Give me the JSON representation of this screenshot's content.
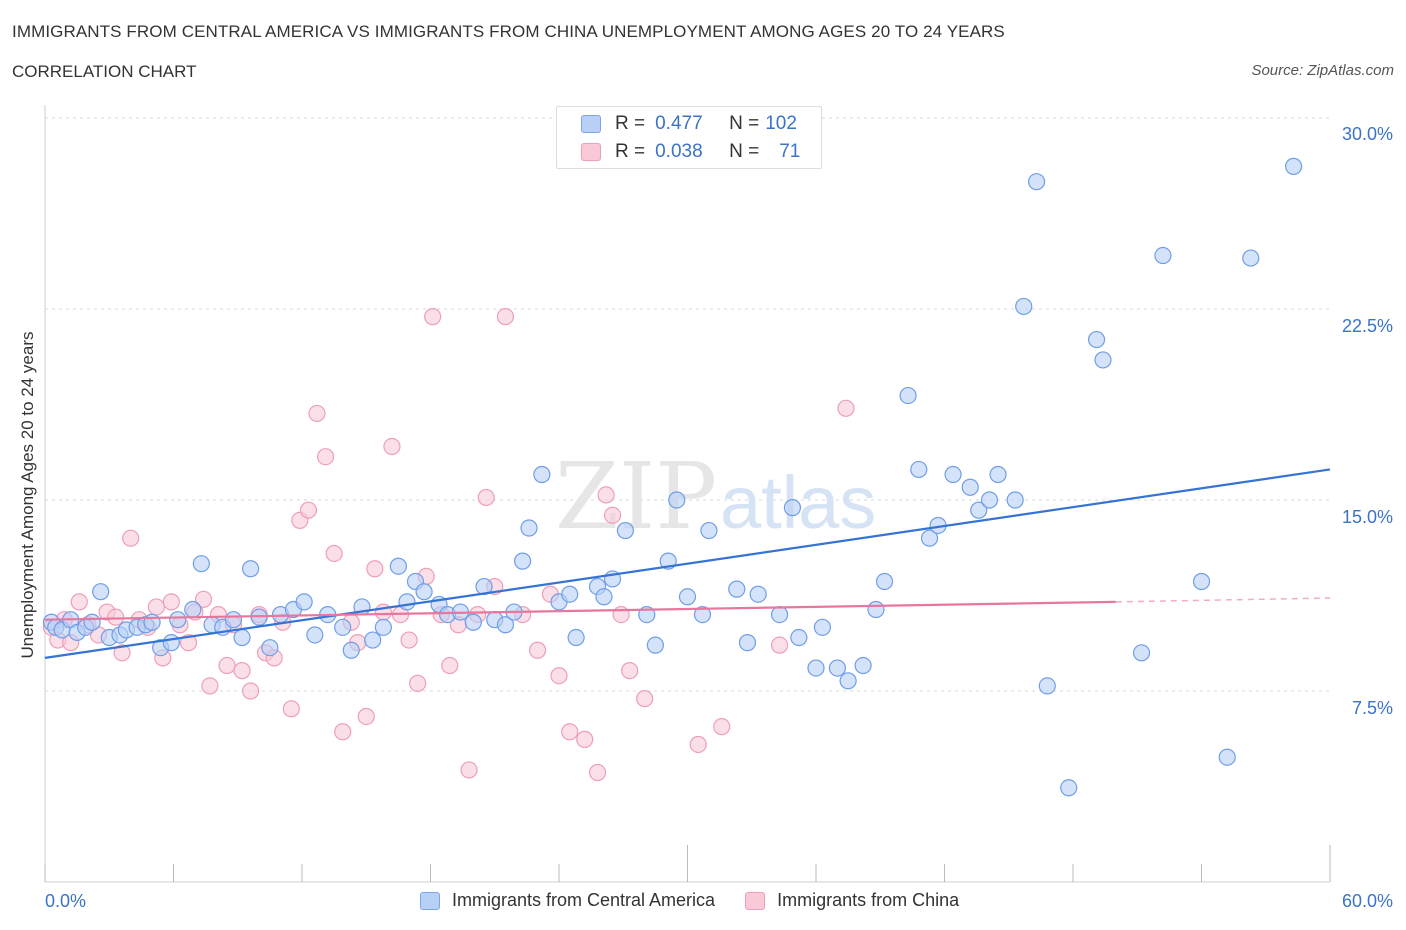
{
  "header": {
    "title": "IMMIGRANTS FROM CENTRAL AMERICA VS IMMIGRANTS FROM CHINA UNEMPLOYMENT AMONG AGES 20 TO 24 YEARS",
    "subtitle": "CORRELATION CHART",
    "source": "Source: ZipAtlas.com"
  },
  "legend": {
    "r_label": "R =",
    "n_label": "N =",
    "series": [
      {
        "r": "0.477",
        "n": "102"
      },
      {
        "r": "0.038",
        "n": "71"
      }
    ]
  },
  "watermark": {
    "zip": "ZIP",
    "atlas": "atlas"
  },
  "chart_data": {
    "type": "scatter",
    "title": "IMMIGRANTS FROM CENTRAL AMERICA VS IMMIGRANTS FROM CHINA UNEMPLOYMENT AMONG AGES 20 TO 24 YEARS",
    "subtitle": "CORRELATION CHART",
    "xlabel": "",
    "ylabel": "Unemployment Among Ages 20 to 24 years",
    "xlim": [
      0,
      60
    ],
    "ylim": [
      0,
      30
    ],
    "x_tick_labels": [
      "0.0%",
      "60.0%"
    ],
    "y_tick_labels": [
      "7.5%",
      "15.0%",
      "22.5%",
      "30.0%"
    ],
    "y_ticks": [
      7.5,
      15,
      22.5,
      30
    ],
    "grid": "horizontal dashed",
    "legend_position": "top-center and bottom",
    "colors": {
      "blue": "#6f9ee8",
      "blue_fill": "#b8d0f5",
      "blue_line": "#3574d4",
      "pink": "#ee9fb8",
      "pink_fill": "#f9c9d8",
      "pink_line": "#e7779e"
    },
    "series": [
      {
        "name": "Immigrants from Central America",
        "color": "blue",
        "r": 0.477,
        "n": 102,
        "trend": {
          "x0": 0,
          "y0": 8.8,
          "x1": 60,
          "y1": 16.2
        },
        "points": [
          [
            0.3,
            10.2
          ],
          [
            0.5,
            10.0
          ],
          [
            0.8,
            9.9
          ],
          [
            1.2,
            10.3
          ],
          [
            1.5,
            9.8
          ],
          [
            1.9,
            10.0
          ],
          [
            2.2,
            10.2
          ],
          [
            2.6,
            11.4
          ],
          [
            3.0,
            9.6
          ],
          [
            3.5,
            9.7
          ],
          [
            3.8,
            9.9
          ],
          [
            4.3,
            10.0
          ],
          [
            4.7,
            10.1
          ],
          [
            5.0,
            10.2
          ],
          [
            5.4,
            9.2
          ],
          [
            5.9,
            9.4
          ],
          [
            6.2,
            10.3
          ],
          [
            6.9,
            10.7
          ],
          [
            7.3,
            12.5
          ],
          [
            7.8,
            10.1
          ],
          [
            8.3,
            10.0
          ],
          [
            8.8,
            10.3
          ],
          [
            9.2,
            9.6
          ],
          [
            9.6,
            12.3
          ],
          [
            10.0,
            10.4
          ],
          [
            10.5,
            9.2
          ],
          [
            11.0,
            10.5
          ],
          [
            11.6,
            10.7
          ],
          [
            12.1,
            11.0
          ],
          [
            12.6,
            9.7
          ],
          [
            13.2,
            10.5
          ],
          [
            13.9,
            10.0
          ],
          [
            14.3,
            9.1
          ],
          [
            14.8,
            10.8
          ],
          [
            15.3,
            9.5
          ],
          [
            15.8,
            10.0
          ],
          [
            16.5,
            12.4
          ],
          [
            16.9,
            11.0
          ],
          [
            17.3,
            11.8
          ],
          [
            17.7,
            11.4
          ],
          [
            18.4,
            10.9
          ],
          [
            18.8,
            10.5
          ],
          [
            19.4,
            10.6
          ],
          [
            20.0,
            10.2
          ],
          [
            20.5,
            11.6
          ],
          [
            21.0,
            10.3
          ],
          [
            21.5,
            10.1
          ],
          [
            21.9,
            10.6
          ],
          [
            22.3,
            12.6
          ],
          [
            22.6,
            13.9
          ],
          [
            23.2,
            16.0
          ],
          [
            24.0,
            11.0
          ],
          [
            24.5,
            11.3
          ],
          [
            24.8,
            9.6
          ],
          [
            25.8,
            11.6
          ],
          [
            26.1,
            11.2
          ],
          [
            26.5,
            11.9
          ],
          [
            27.1,
            13.8
          ],
          [
            28.1,
            10.5
          ],
          [
            28.5,
            9.3
          ],
          [
            29.1,
            12.6
          ],
          [
            29.5,
            15.0
          ],
          [
            30.0,
            11.2
          ],
          [
            30.7,
            10.5
          ],
          [
            31.0,
            13.8
          ],
          [
            32.3,
            11.5
          ],
          [
            32.8,
            9.4
          ],
          [
            33.3,
            11.3
          ],
          [
            34.3,
            10.5
          ],
          [
            34.9,
            14.7
          ],
          [
            35.2,
            9.6
          ],
          [
            36.0,
            8.4
          ],
          [
            36.3,
            10.0
          ],
          [
            37.0,
            8.4
          ],
          [
            37.5,
            7.9
          ],
          [
            38.2,
            8.5
          ],
          [
            38.8,
            10.7
          ],
          [
            39.2,
            11.8
          ],
          [
            40.3,
            19.1
          ],
          [
            40.8,
            16.2
          ],
          [
            41.3,
            13.5
          ],
          [
            41.7,
            14.0
          ],
          [
            42.4,
            16.0
          ],
          [
            43.2,
            15.5
          ],
          [
            43.6,
            14.6
          ],
          [
            44.1,
            15.0
          ],
          [
            44.5,
            16.0
          ],
          [
            45.3,
            15.0
          ],
          [
            45.7,
            22.6
          ],
          [
            46.3,
            27.5
          ],
          [
            46.8,
            7.7
          ],
          [
            47.8,
            3.7
          ],
          [
            49.1,
            21.3
          ],
          [
            49.4,
            20.5
          ],
          [
            51.2,
            9.0
          ],
          [
            52.2,
            24.6
          ],
          [
            54.0,
            11.8
          ],
          [
            55.2,
            4.9
          ],
          [
            56.3,
            24.5
          ],
          [
            58.3,
            28.1
          ]
        ]
      },
      {
        "name": "Immigrants from China",
        "color": "pink",
        "r": 0.038,
        "n": 71,
        "trend": {
          "x0": 0,
          "y0": 10.3,
          "x1": 50,
          "y1": 11.0,
          "dash_to_x": 60,
          "dash_to_y": 11.15
        },
        "points": [
          [
            0.3,
            10.0
          ],
          [
            0.6,
            9.5
          ],
          [
            0.9,
            10.3
          ],
          [
            1.2,
            9.4
          ],
          [
            1.6,
            11.0
          ],
          [
            2.0,
            10.1
          ],
          [
            2.5,
            9.7
          ],
          [
            2.9,
            10.6
          ],
          [
            3.3,
            10.4
          ],
          [
            3.6,
            9.0
          ],
          [
            4.0,
            13.5
          ],
          [
            4.4,
            10.3
          ],
          [
            4.8,
            10.0
          ],
          [
            5.2,
            10.8
          ],
          [
            5.5,
            8.8
          ],
          [
            5.9,
            11.0
          ],
          [
            6.3,
            10.1
          ],
          [
            6.7,
            9.4
          ],
          [
            7.0,
            10.6
          ],
          [
            7.4,
            11.1
          ],
          [
            7.7,
            7.7
          ],
          [
            8.1,
            10.5
          ],
          [
            8.5,
            8.5
          ],
          [
            8.8,
            10.1
          ],
          [
            9.2,
            8.3
          ],
          [
            9.6,
            7.5
          ],
          [
            10.0,
            10.5
          ],
          [
            10.3,
            9.0
          ],
          [
            10.7,
            8.8
          ],
          [
            11.1,
            10.2
          ],
          [
            11.5,
            6.8
          ],
          [
            11.9,
            14.2
          ],
          [
            12.3,
            14.6
          ],
          [
            12.7,
            18.4
          ],
          [
            13.1,
            16.7
          ],
          [
            13.5,
            12.9
          ],
          [
            13.9,
            5.9
          ],
          [
            14.3,
            10.2
          ],
          [
            14.6,
            9.4
          ],
          [
            15.0,
            6.5
          ],
          [
            15.4,
            12.3
          ],
          [
            15.8,
            10.6
          ],
          [
            16.2,
            17.1
          ],
          [
            16.6,
            10.5
          ],
          [
            17.0,
            9.5
          ],
          [
            17.4,
            7.8
          ],
          [
            17.8,
            12.0
          ],
          [
            18.1,
            22.2
          ],
          [
            18.5,
            10.5
          ],
          [
            18.9,
            8.5
          ],
          [
            19.3,
            10.1
          ],
          [
            19.8,
            4.4
          ],
          [
            20.2,
            10.5
          ],
          [
            20.6,
            15.1
          ],
          [
            21.0,
            11.6
          ],
          [
            21.5,
            22.2
          ],
          [
            22.3,
            10.5
          ],
          [
            23.0,
            9.1
          ],
          [
            23.6,
            11.3
          ],
          [
            24.0,
            8.1
          ],
          [
            24.5,
            5.9
          ],
          [
            25.2,
            5.6
          ],
          [
            25.8,
            4.3
          ],
          [
            26.2,
            15.2
          ],
          [
            26.5,
            14.4
          ],
          [
            26.9,
            10.5
          ],
          [
            27.3,
            8.3
          ],
          [
            28.0,
            7.2
          ],
          [
            30.5,
            5.4
          ],
          [
            31.6,
            6.1
          ],
          [
            34.3,
            9.3
          ],
          [
            37.4,
            18.6
          ]
        ]
      }
    ]
  },
  "axis": {
    "y_title": "Unemployment Among Ages 20 to 24 years",
    "x_left": "0.0%",
    "x_right": "60.0%",
    "y_ticks": [
      "7.5%",
      "15.0%",
      "22.5%",
      "30.0%"
    ]
  },
  "bottom_legend": {
    "blue_label": "Immigrants from Central America",
    "pink_label": "Immigrants from China"
  }
}
